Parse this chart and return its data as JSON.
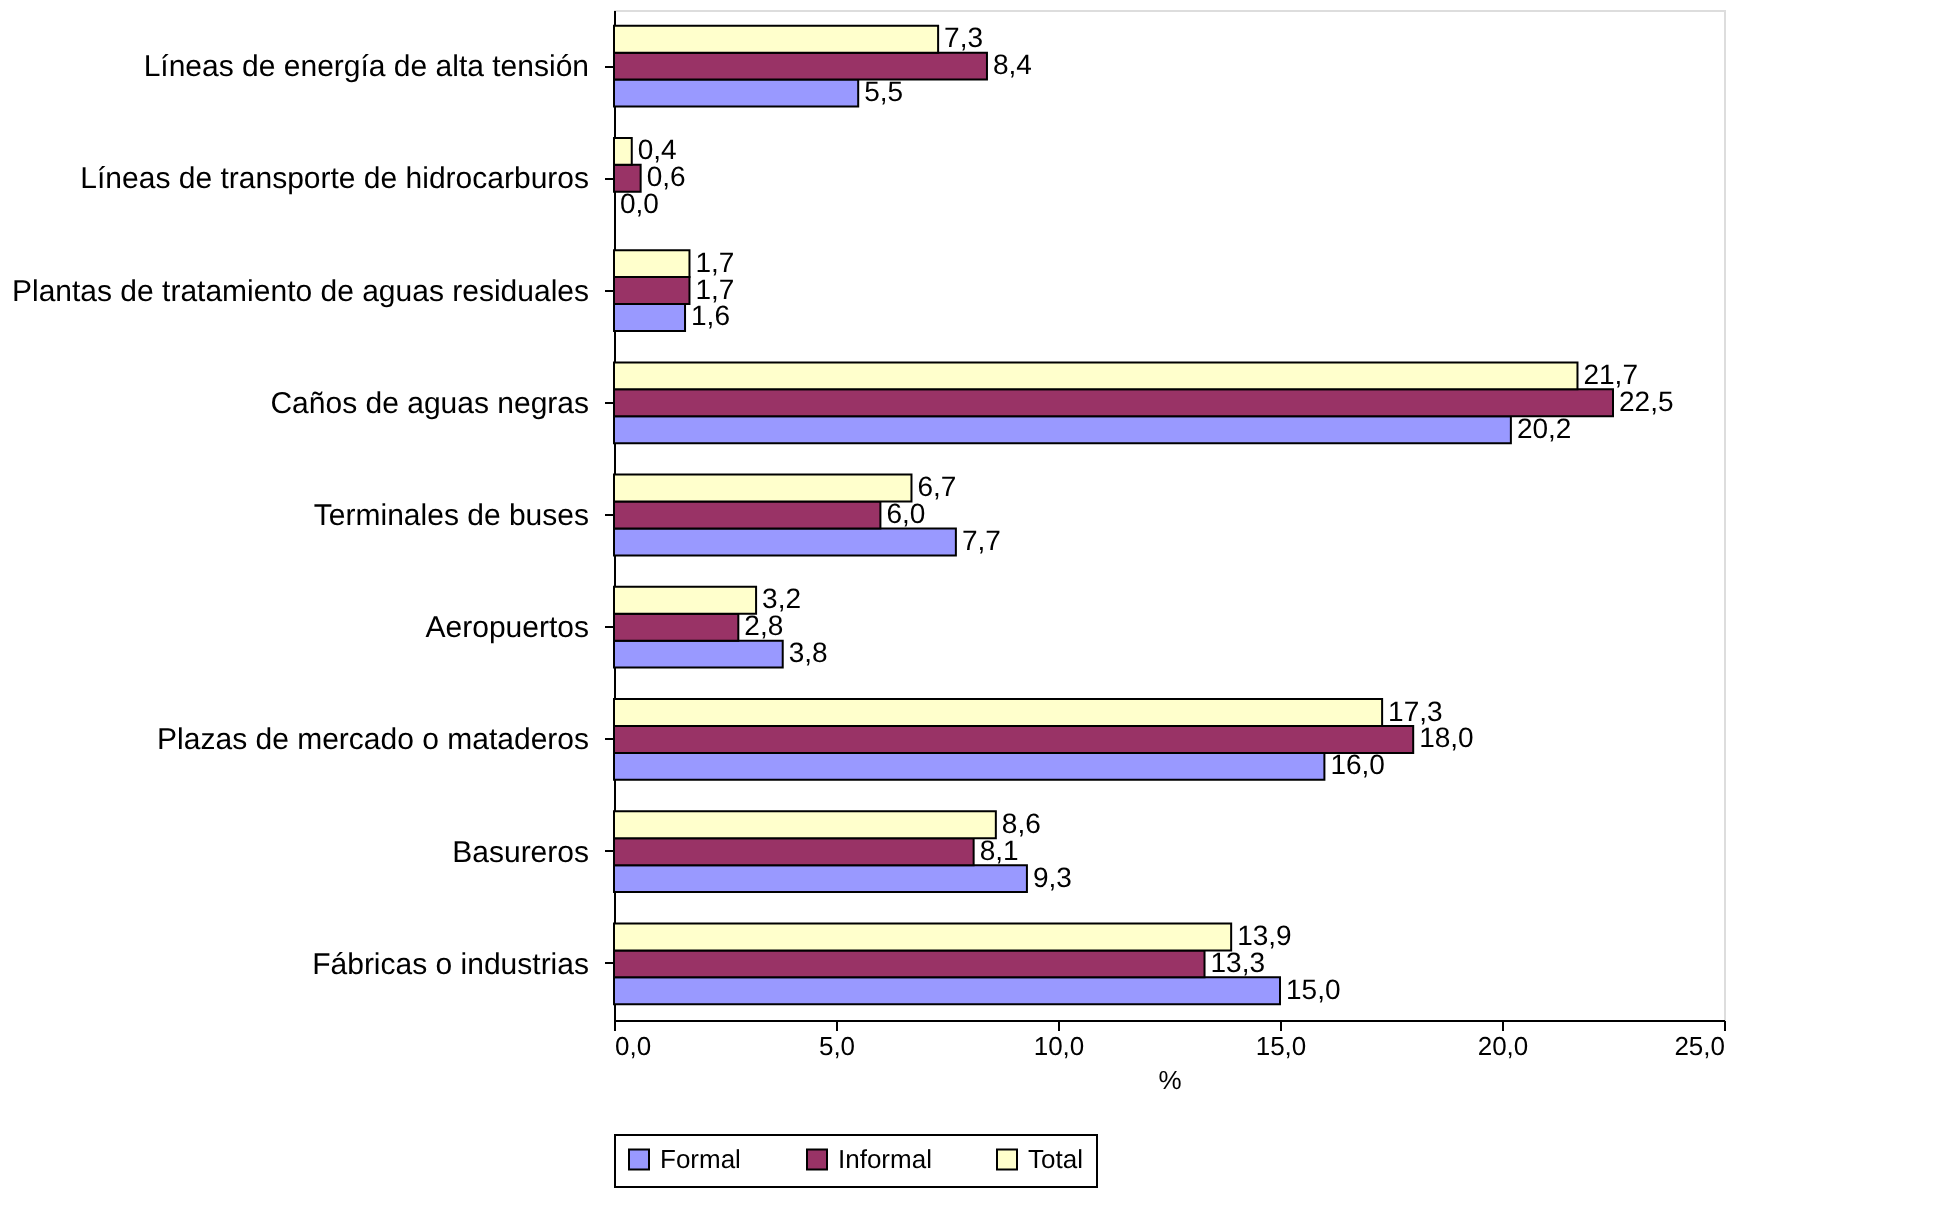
{
  "chart_data": {
    "type": "bar",
    "orientation": "horizontal",
    "xlabel": "%",
    "categories": [
      "Líneas de energía de alta tensión",
      "Líneas de transporte de hidrocarburos",
      "Plantas de tratamiento de aguas residuales",
      "Caños de aguas negras",
      "Terminales de buses",
      "Aeropuertos",
      "Plazas de mercado o mataderos",
      "Basureros",
      "Fábricas o industrias"
    ],
    "series": [
      {
        "name": "Formal",
        "color": "#9999ff",
        "values": [
          5.5,
          0.0,
          1.6,
          20.2,
          7.7,
          3.8,
          16.0,
          9.3,
          15.0
        ],
        "value_labels": [
          "5,5",
          "0,0",
          "1,6",
          "20,2",
          "7,7",
          "3,8",
          "16,0",
          "9,3",
          "15,0"
        ]
      },
      {
        "name": "Informal",
        "color": "#993366",
        "values": [
          8.4,
          0.6,
          1.7,
          22.5,
          6.0,
          2.8,
          18.0,
          8.1,
          13.3
        ],
        "value_labels": [
          "8,4",
          "0,6",
          "1,7",
          "22,5",
          "6,0",
          "2,8",
          "18,0",
          "8,1",
          "13,3"
        ]
      },
      {
        "name": "Total",
        "color": "#ffffcc",
        "values": [
          7.3,
          0.4,
          1.7,
          21.7,
          6.7,
          3.2,
          17.3,
          8.6,
          13.9
        ],
        "value_labels": [
          "7,3",
          "0,4",
          "1,7",
          "21,7",
          "6,7",
          "3,2",
          "17,3",
          "8,6",
          "13,9"
        ]
      }
    ],
    "xlim": [
      0,
      25
    ],
    "xticks": [
      {
        "value": 0,
        "label": "0,0"
      },
      {
        "value": 5,
        "label": "5,0"
      },
      {
        "value": 10,
        "label": "10,0"
      },
      {
        "value": 15,
        "label": "15,0"
      },
      {
        "value": 20,
        "label": "20,0"
      },
      {
        "value": 25,
        "label": "25,0"
      }
    ],
    "grid": false,
    "legend": "bottom"
  }
}
